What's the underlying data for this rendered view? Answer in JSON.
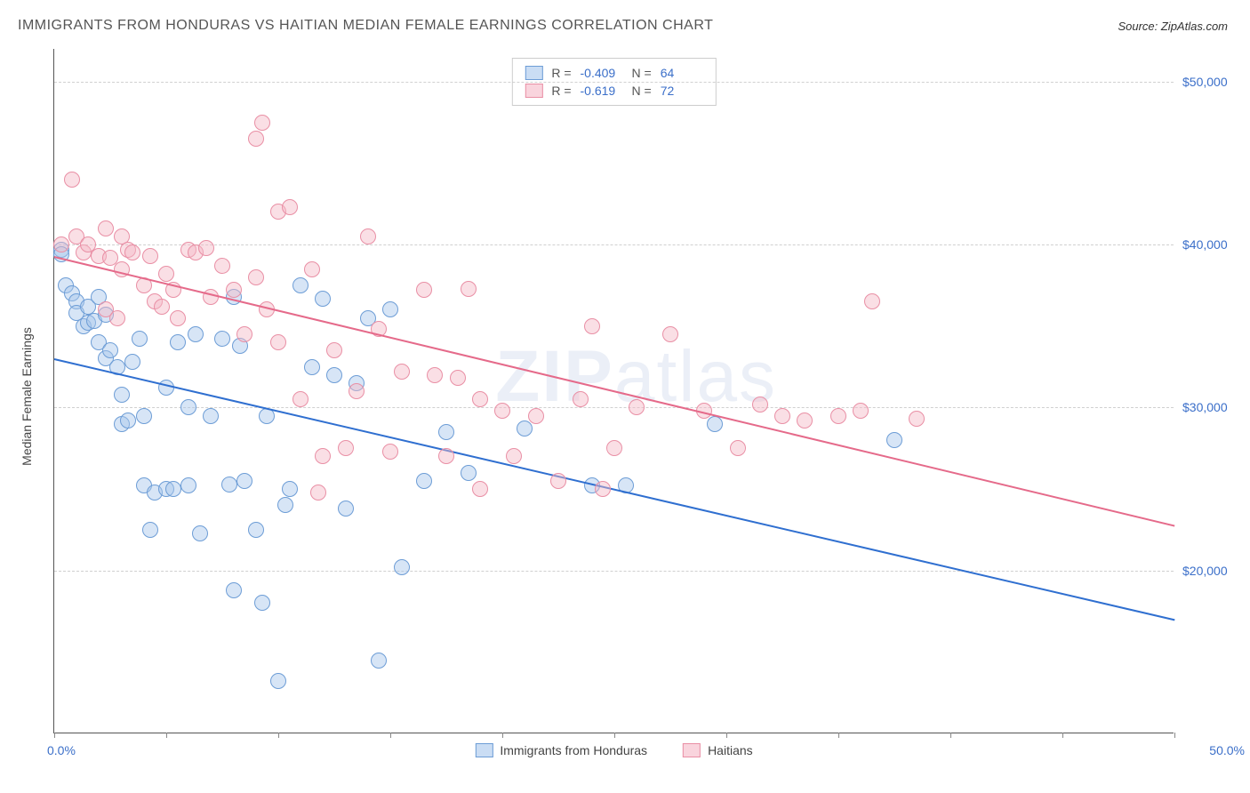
{
  "title": "IMMIGRANTS FROM HONDURAS VS HAITIAN MEDIAN FEMALE EARNINGS CORRELATION CHART",
  "source": "Source: ZipAtlas.com",
  "y_axis_title": "Median Female Earnings",
  "watermark_bold": "ZIP",
  "watermark_rest": "atlas",
  "chart": {
    "type": "scatter_with_regression",
    "xlim": [
      0,
      50
    ],
    "ylim": [
      10000,
      52000
    ],
    "x_start_label": "0.0%",
    "x_end_label": "50.0%",
    "x_minor_ticks": [
      0,
      5,
      10,
      15,
      20,
      25,
      30,
      35,
      40,
      45,
      50
    ],
    "y_ticks": [
      20000,
      30000,
      40000,
      50000
    ],
    "y_tick_labels": [
      "$20,000",
      "$30,000",
      "$40,000",
      "$50,000"
    ],
    "grid_color": "#d0d0d0",
    "axis_color": "#555555",
    "tick_label_color": "#3b6fc9",
    "background_color": "#ffffff",
    "marker_radius": 9,
    "marker_opacity": 0.45,
    "line_width": 2
  },
  "series": [
    {
      "name": "Immigrants from Honduras",
      "color_fill": "#a7c6ec",
      "color_border": "#6d9dd6",
      "line_color": "#2f6fd0",
      "R": "-0.409",
      "N": "64",
      "trend": {
        "x1": 0,
        "y1": 33000,
        "x2": 50,
        "y2": 17000
      },
      "points": [
        [
          0.3,
          39700
        ],
        [
          0.5,
          37500
        ],
        [
          0.8,
          37000
        ],
        [
          1.0,
          36500
        ],
        [
          1.0,
          35800
        ],
        [
          1.3,
          35000
        ],
        [
          1.5,
          36200
        ],
        [
          1.5,
          35200
        ],
        [
          1.8,
          35300
        ],
        [
          2.0,
          34000
        ],
        [
          2.0,
          36800
        ],
        [
          2.3,
          33000
        ],
        [
          2.3,
          35700
        ],
        [
          2.5,
          33500
        ],
        [
          2.8,
          32500
        ],
        [
          3.0,
          30800
        ],
        [
          3.0,
          29000
        ],
        [
          3.3,
          29200
        ],
        [
          3.5,
          32800
        ],
        [
          3.8,
          34200
        ],
        [
          4.0,
          25200
        ],
        [
          4.0,
          29500
        ],
        [
          4.3,
          22500
        ],
        [
          4.5,
          24800
        ],
        [
          5.0,
          31200
        ],
        [
          5.0,
          25000
        ],
        [
          5.3,
          25000
        ],
        [
          5.5,
          34000
        ],
        [
          6.0,
          25200
        ],
        [
          6.0,
          30000
        ],
        [
          6.3,
          34500
        ],
        [
          6.5,
          22300
        ],
        [
          7.0,
          29500
        ],
        [
          7.5,
          34200
        ],
        [
          7.8,
          25300
        ],
        [
          8.0,
          18800
        ],
        [
          8.0,
          36800
        ],
        [
          8.3,
          33800
        ],
        [
          8.5,
          25500
        ],
        [
          9.0,
          22500
        ],
        [
          9.3,
          18000
        ],
        [
          9.5,
          29500
        ],
        [
          10.0,
          13200
        ],
        [
          10.3,
          24000
        ],
        [
          10.5,
          25000
        ],
        [
          11.0,
          37500
        ],
        [
          11.5,
          32500
        ],
        [
          12.0,
          36700
        ],
        [
          12.5,
          32000
        ],
        [
          13.0,
          23800
        ],
        [
          13.5,
          31500
        ],
        [
          14.0,
          35500
        ],
        [
          14.5,
          14500
        ],
        [
          15.0,
          36000
        ],
        [
          15.5,
          20200
        ],
        [
          16.5,
          25500
        ],
        [
          17.5,
          28500
        ],
        [
          18.5,
          26000
        ],
        [
          21.0,
          28700
        ],
        [
          24.0,
          25200
        ],
        [
          25.5,
          25200
        ],
        [
          29.5,
          29000
        ],
        [
          37.5,
          28000
        ],
        [
          0.3,
          39400
        ]
      ]
    },
    {
      "name": "Haitians",
      "color_fill": "#f5b8c6",
      "color_border": "#e98fa5",
      "line_color": "#e56a8a",
      "R": "-0.619",
      "N": "72",
      "trend": {
        "x1": 0,
        "y1": 39300,
        "x2": 50,
        "y2": 22800
      },
      "points": [
        [
          0.3,
          40000
        ],
        [
          0.8,
          44000
        ],
        [
          1.0,
          40500
        ],
        [
          1.3,
          39500
        ],
        [
          1.5,
          40000
        ],
        [
          2.0,
          39300
        ],
        [
          2.3,
          41000
        ],
        [
          2.3,
          36000
        ],
        [
          2.5,
          39200
        ],
        [
          2.8,
          35500
        ],
        [
          3.0,
          38500
        ],
        [
          3.0,
          40500
        ],
        [
          3.3,
          39700
        ],
        [
          3.5,
          39500
        ],
        [
          4.0,
          37500
        ],
        [
          4.3,
          39300
        ],
        [
          4.5,
          36500
        ],
        [
          5.0,
          38200
        ],
        [
          5.3,
          37200
        ],
        [
          5.5,
          35500
        ],
        [
          6.0,
          39700
        ],
        [
          6.3,
          39500
        ],
        [
          7.0,
          36800
        ],
        [
          7.5,
          38700
        ],
        [
          8.0,
          37200
        ],
        [
          8.5,
          34500
        ],
        [
          9.0,
          38000
        ],
        [
          9.0,
          46500
        ],
        [
          9.3,
          47500
        ],
        [
          9.5,
          36000
        ],
        [
          10.0,
          42000
        ],
        [
          10.0,
          34000
        ],
        [
          10.5,
          42300
        ],
        [
          11.0,
          30500
        ],
        [
          11.5,
          38500
        ],
        [
          12.0,
          27000
        ],
        [
          12.5,
          33500
        ],
        [
          13.0,
          27500
        ],
        [
          13.5,
          31000
        ],
        [
          14.0,
          40500
        ],
        [
          14.5,
          34800
        ],
        [
          15.0,
          27300
        ],
        [
          15.5,
          32200
        ],
        [
          16.5,
          37200
        ],
        [
          17.0,
          32000
        ],
        [
          17.5,
          27000
        ],
        [
          18.0,
          31800
        ],
        [
          18.5,
          37300
        ],
        [
          19.0,
          30500
        ],
        [
          19.0,
          25000
        ],
        [
          20.0,
          29800
        ],
        [
          20.5,
          27000
        ],
        [
          21.5,
          29500
        ],
        [
          22.5,
          25500
        ],
        [
          23.5,
          30500
        ],
        [
          24.0,
          35000
        ],
        [
          25.0,
          27500
        ],
        [
          26.0,
          30000
        ],
        [
          27.5,
          34500
        ],
        [
          29.0,
          29800
        ],
        [
          30.5,
          27500
        ],
        [
          31.5,
          30200
        ],
        [
          32.5,
          29500
        ],
        [
          33.5,
          29200
        ],
        [
          35.0,
          29500
        ],
        [
          36.0,
          29800
        ],
        [
          36.5,
          36500
        ],
        [
          38.5,
          29300
        ],
        [
          24.5,
          25000
        ],
        [
          6.8,
          39800
        ],
        [
          4.8,
          36200
        ],
        [
          11.8,
          24800
        ]
      ]
    }
  ],
  "legend": {
    "series1": "Immigrants from Honduras",
    "series2": "Haitians"
  },
  "stats_box": {
    "r_label": "R =",
    "n_label": "N ="
  }
}
